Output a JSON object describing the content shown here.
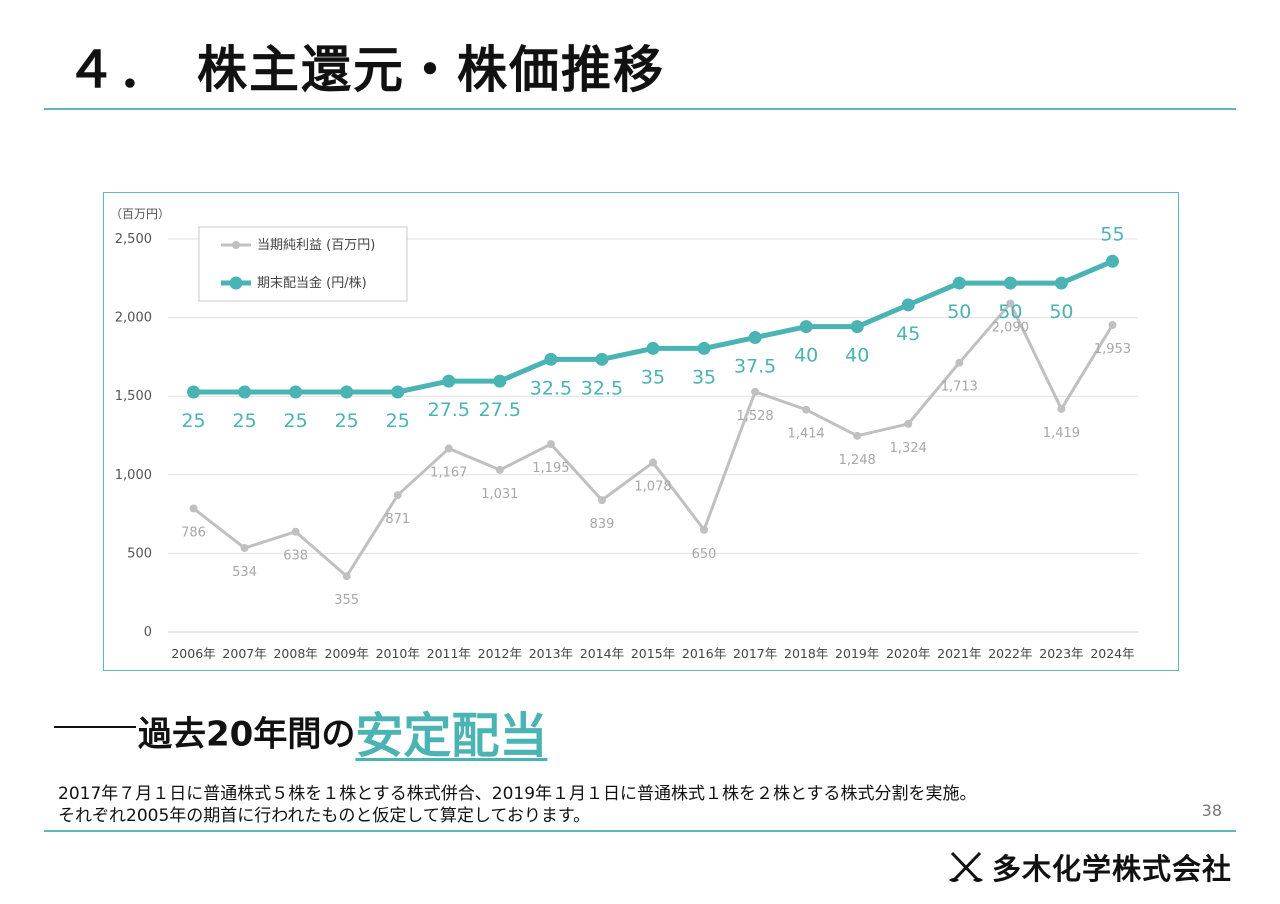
{
  "title": "４．　株主還元・株価推移",
  "unit_label": "（百万円）",
  "legend": {
    "net_income": "当期純利益 (百万円)",
    "dividend": "期末配当金 (円/株)"
  },
  "colors": {
    "accent": "#4ab3b3",
    "net_income": "#c0c0c0",
    "frame": "#5bb8bd"
  },
  "chart_data": {
    "type": "line",
    "categories": [
      "2006年",
      "2007年",
      "2008年",
      "2009年",
      "2010年",
      "2011年",
      "2012年",
      "2013年",
      "2014年",
      "2015年",
      "2016年",
      "2017年",
      "2018年",
      "2019年",
      "2020年",
      "2021年",
      "2022年",
      "2023年",
      "2024年"
    ],
    "y_ticks": [
      "0",
      "500",
      "1,000",
      "1,500",
      "2,000",
      "2,500"
    ],
    "ylim": [
      0,
      2500
    ],
    "grid": true,
    "legend_position": "top-left",
    "series": [
      {
        "name": "当期純利益 (百万円)",
        "axis": "left",
        "values": [
          786,
          534,
          638,
          355,
          871,
          1167,
          1031,
          1195,
          839,
          1078,
          650,
          1528,
          1414,
          1248,
          1324,
          1713,
          2090,
          1419,
          1953
        ],
        "labels": [
          "786",
          "534",
          "638",
          "355",
          "871",
          "1,167",
          "1,031",
          "1,195",
          "839",
          "1,078",
          "650",
          "1,528",
          "1,414",
          "1,248",
          "1,324",
          "1,713",
          "2,090",
          "1,419",
          "1,953"
        ]
      },
      {
        "name": "期末配当金 (円/株)",
        "axis": "secondary",
        "values": [
          25,
          25,
          25,
          25,
          25,
          27.5,
          27.5,
          32.5,
          32.5,
          35,
          35,
          37.5,
          40,
          40,
          45,
          50,
          50,
          50,
          55
        ],
        "labels": [
          "25",
          "25",
          "25",
          "25",
          "25",
          "27.5",
          "27.5",
          "32.5",
          "32.5",
          "35",
          "35",
          "37.5",
          "40",
          "40",
          "45",
          "50",
          "50",
          "50",
          "55"
        ]
      }
    ]
  },
  "headline": {
    "lead": "過去20年間の",
    "accent": "安定配当"
  },
  "notes": [
    "2017年７月１日に普通株式５株を１株とする株式併合、2019年１月１日に普通株式１株を２株とする株式分割を実施。",
    "それぞれ2005年の期首に行われたものと仮定して算定しております。"
  ],
  "page_number": "38",
  "company": "多木化学株式会社"
}
